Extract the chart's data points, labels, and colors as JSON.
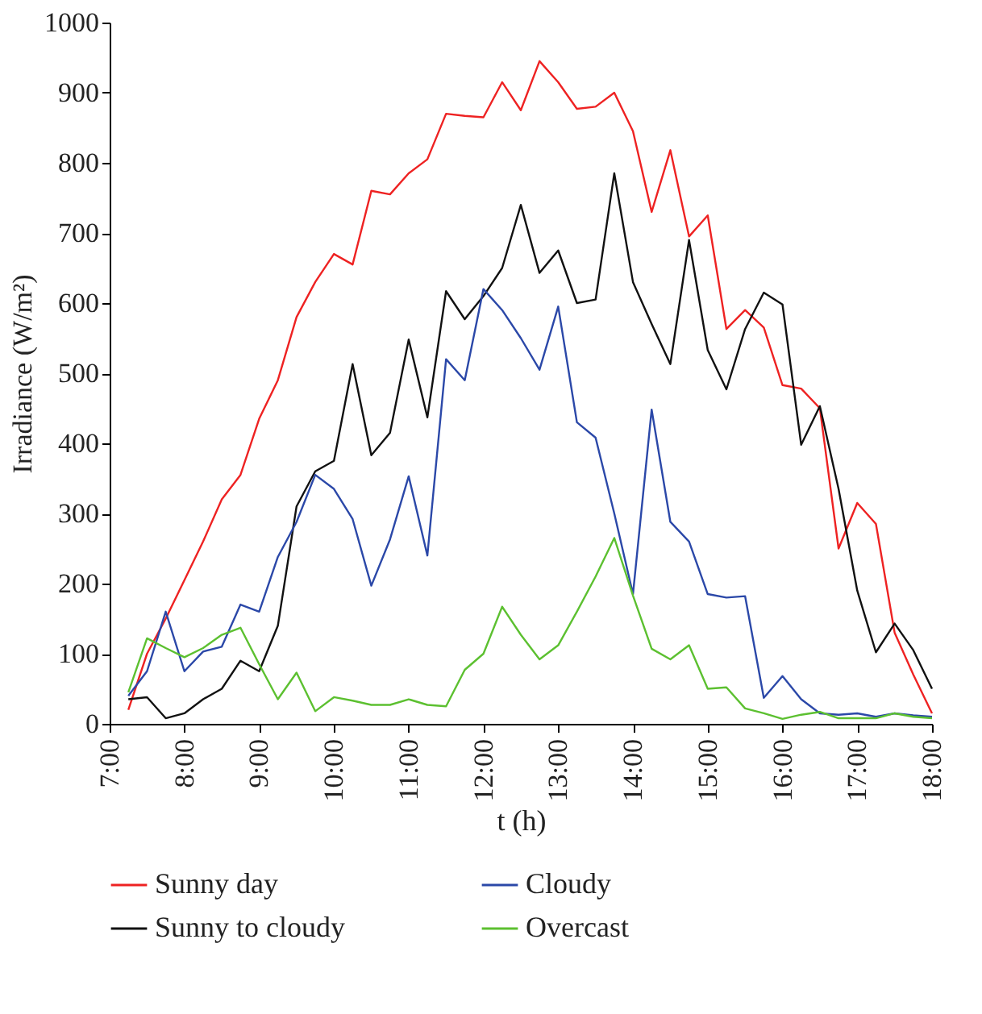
{
  "chart_data": {
    "type": "line",
    "xlabel": "t (h)",
    "ylabel": "Irradiance (W/m²)",
    "x": [
      7.25,
      7.5,
      7.75,
      8,
      8.25,
      8.5,
      8.75,
      9,
      9.25,
      9.5,
      9.75,
      10,
      10.25,
      10.5,
      10.75,
      11,
      11.25,
      11.5,
      11.75,
      12,
      12.25,
      12.5,
      12.75,
      13,
      13.25,
      13.5,
      13.75,
      14,
      14.25,
      14.5,
      14.75,
      15,
      15.25,
      15.5,
      15.75,
      16,
      16.25,
      16.5,
      16.75,
      17,
      17.25,
      17.5,
      17.75,
      18
    ],
    "series": [
      {
        "name": "Sunny day",
        "color": "#ee2222",
        "values": [
          20,
          100,
          150,
          205,
          260,
          320,
          355,
          435,
          490,
          580,
          630,
          670,
          655,
          760,
          755,
          785,
          805,
          870,
          867,
          865,
          915,
          875,
          945,
          915,
          877,
          880,
          900,
          845,
          730,
          818,
          695,
          725,
          563,
          590,
          565,
          483,
          478,
          450,
          250,
          315,
          285,
          130,
          70,
          15
        ]
      },
      {
        "name": "Sunny to cloudy",
        "color": "#111111",
        "values": [
          35,
          38,
          8,
          15,
          35,
          50,
          90,
          75,
          140,
          310,
          360,
          375,
          513,
          383,
          415,
          548,
          437,
          617,
          577,
          610,
          650,
          740,
          643,
          675,
          600,
          605,
          785,
          630,
          570,
          513,
          690,
          533,
          477,
          563,
          615,
          598,
          398,
          453,
          335,
          190,
          102,
          143,
          105,
          50
        ]
      },
      {
        "name": "Cloudy",
        "color": "#2b48a8",
        "values": [
          40,
          75,
          160,
          75,
          103,
          110,
          170,
          160,
          238,
          288,
          355,
          335,
          292,
          197,
          263,
          353,
          240,
          520,
          490,
          620,
          590,
          550,
          505,
          595,
          430,
          408,
          300,
          185,
          448,
          288,
          260,
          185,
          180,
          182,
          37,
          68,
          35,
          15,
          13,
          15,
          10,
          15,
          12,
          10
        ]
      },
      {
        "name": "Overcast",
        "color": "#5cc030",
        "values": [
          45,
          122,
          108,
          95,
          108,
          127,
          137,
          85,
          35,
          73,
          18,
          38,
          33,
          27,
          27,
          35,
          27,
          25,
          77,
          100,
          167,
          127,
          92,
          112,
          160,
          210,
          265,
          183,
          107,
          92,
          112,
          50,
          52,
          22,
          15,
          7,
          13,
          17,
          8,
          8,
          8,
          15,
          10,
          8
        ]
      }
    ],
    "xlim": [
      7,
      18
    ],
    "ylim": [
      0,
      1000
    ],
    "xticks": [
      {
        "value": 7,
        "label": "7:00"
      },
      {
        "value": 8,
        "label": "8:00"
      },
      {
        "value": 9,
        "label": "9:00"
      },
      {
        "value": 10,
        "label": "10:00"
      },
      {
        "value": 11,
        "label": "11:00"
      },
      {
        "value": 12,
        "label": "12:00"
      },
      {
        "value": 13,
        "label": "13:00"
      },
      {
        "value": 14,
        "label": "14:00"
      },
      {
        "value": 15,
        "label": "15:00"
      },
      {
        "value": 16,
        "label": "16:00"
      },
      {
        "value": 17,
        "label": "17:00"
      },
      {
        "value": 18,
        "label": "18:00"
      }
    ],
    "yticks": [
      0,
      100,
      200,
      300,
      400,
      500,
      600,
      700,
      800,
      900,
      1000
    ],
    "grid": false,
    "legend": "bottom",
    "marker": "none",
    "line_style": "solid"
  }
}
